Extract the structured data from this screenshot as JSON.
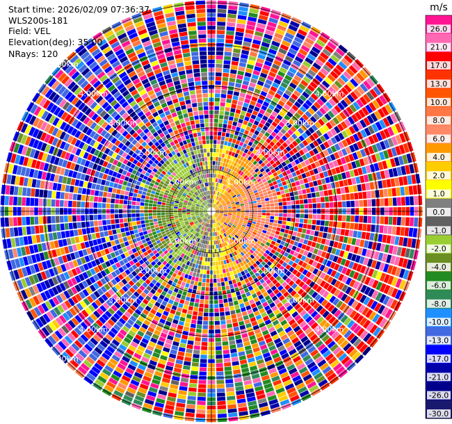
{
  "header": {
    "start_time": "Start time: 2026/02/09 07:36:37",
    "instrument": "WLS200s-181",
    "field": "Field: VEL",
    "elevation": "Elevation(deg): 35.00",
    "nrays": "NRays: 120"
  },
  "chart_data": {
    "type": "polar-ppi",
    "field": "VEL",
    "rays": 120,
    "range_rings_km": [
      1.0,
      2.0,
      3.0,
      4.0,
      5.0
    ],
    "ring_labels": [
      {
        "text": "1.00km",
        "ring": 1,
        "directions": [
          "NW",
          "NE",
          "SW",
          "SE"
        ]
      },
      {
        "text": "2.00km",
        "ring": 2,
        "directions": [
          "NW",
          "NE",
          "SW",
          "SE"
        ]
      },
      {
        "text": "3.00km",
        "ring": 3,
        "directions": [
          "NW",
          "NE",
          "SW",
          "SE"
        ]
      },
      {
        "text": "4.00km",
        "ring": 4,
        "directions": [
          "NW",
          "NE",
          "SW",
          "SE"
        ]
      },
      {
        "text": "5.00km",
        "ring": 5,
        "directions": [
          "NW",
          "SW"
        ]
      }
    ],
    "colorbar": {
      "unit": "m/s",
      "ticks": [
        "26.0",
        "21.0",
        "17.0",
        "13.0",
        "10.0",
        "8.0",
        "6.0",
        "4.0",
        "2.0",
        "1.0",
        "0.0",
        "-1.0",
        "-2.0",
        "-4.0",
        "-6.0",
        "-8.0",
        "-10.0",
        "-13.0",
        "-17.0",
        "-21.0",
        "-26.0",
        "-30.0"
      ],
      "colors": [
        "#ff1493",
        "#ff69b4",
        "#ff0000",
        "#ff3300",
        "#ff5500",
        "#ff7744",
        "#ff8866",
        "#ff9900",
        "#ffcc00",
        "#ffff00",
        "#808080",
        "#606060",
        "#9acd32",
        "#6b8e23",
        "#228b22",
        "#2e8b57",
        "#1e90ff",
        "#4169e1",
        "#0000ff",
        "#0000aa",
        "#00008b",
        "#191970"
      ]
    },
    "pattern": {
      "inner_positive_side": "east",
      "inner_negative_side": "west",
      "outer_band_dominant": {
        "east": "red",
        "west": "blue",
        "south": "green-yellow",
        "north": "mixed"
      }
    }
  }
}
